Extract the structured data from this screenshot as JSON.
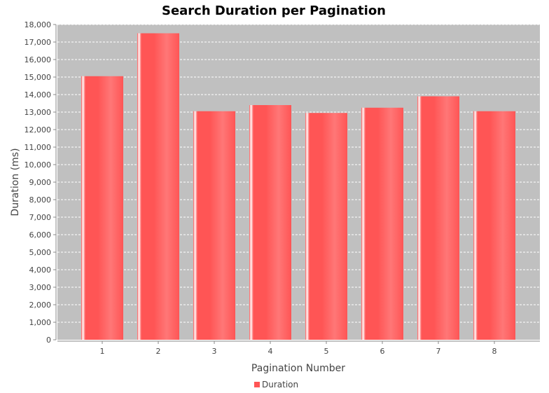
{
  "colors": {
    "background": "#ffffff",
    "plot_background": "#c0c0c0",
    "gridline": "#ffffff",
    "bar": "#ff5555",
    "axis": "#888888",
    "text": "#444444"
  },
  "chart_data": {
    "type": "bar",
    "title": "Search Duration per Pagination",
    "xlabel": "Pagination Number",
    "ylabel": "Duration (ms)",
    "categories": [
      "1",
      "2",
      "3",
      "4",
      "5",
      "6",
      "7",
      "8"
    ],
    "series": [
      {
        "name": "Duration",
        "values": [
          15050,
          17500,
          13050,
          13400,
          12950,
          13250,
          13900,
          13050
        ]
      }
    ],
    "ylim": [
      0,
      18000
    ],
    "ytick_step": 1000,
    "yticks": [
      "0",
      "1,000",
      "2,000",
      "3,000",
      "4,000",
      "5,000",
      "6,000",
      "7,000",
      "8,000",
      "9,000",
      "10,000",
      "11,000",
      "12,000",
      "13,000",
      "14,000",
      "15,000",
      "16,000",
      "17,000",
      "18,000"
    ],
    "grid": true,
    "legend_position": "bottom"
  }
}
